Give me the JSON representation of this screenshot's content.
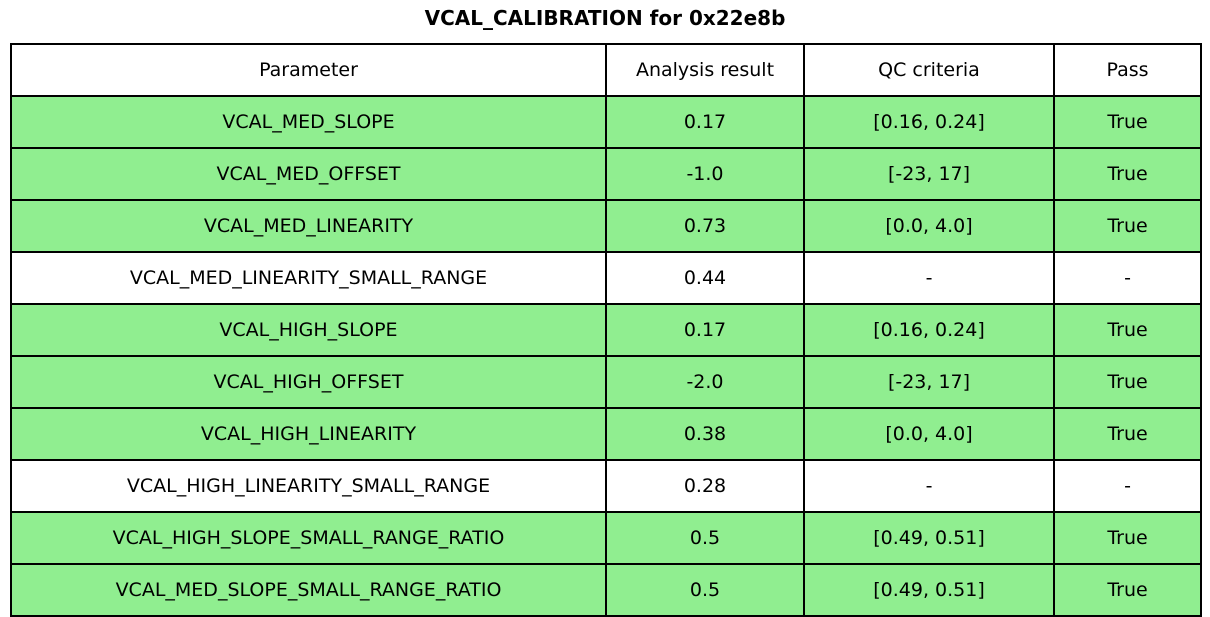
{
  "colors": {
    "row_highlight": "#90EE90",
    "row_plain": "#FFFFFF",
    "border": "#000000",
    "text": "#000000",
    "background": "#FFFFFF"
  },
  "chart_data": {
    "type": "table",
    "title": "VCAL_CALIBRATION for 0x22e8b",
    "columns": [
      "Parameter",
      "Analysis result",
      "QC criteria",
      "Pass"
    ],
    "rows": [
      {
        "parameter": "VCAL_MED_SLOPE",
        "analysis_result": "0.17",
        "qc_criteria": "[0.16, 0.24]",
        "pass": "True",
        "highlighted": true
      },
      {
        "parameter": "VCAL_MED_OFFSET",
        "analysis_result": "-1.0",
        "qc_criteria": "[-23, 17]",
        "pass": "True",
        "highlighted": true
      },
      {
        "parameter": "VCAL_MED_LINEARITY",
        "analysis_result": "0.73",
        "qc_criteria": "[0.0, 4.0]",
        "pass": "True",
        "highlighted": true
      },
      {
        "parameter": "VCAL_MED_LINEARITY_SMALL_RANGE",
        "analysis_result": "0.44",
        "qc_criteria": "-",
        "pass": "-",
        "highlighted": false
      },
      {
        "parameter": "VCAL_HIGH_SLOPE",
        "analysis_result": "0.17",
        "qc_criteria": "[0.16, 0.24]",
        "pass": "True",
        "highlighted": true
      },
      {
        "parameter": "VCAL_HIGH_OFFSET",
        "analysis_result": "-2.0",
        "qc_criteria": "[-23, 17]",
        "pass": "True",
        "highlighted": true
      },
      {
        "parameter": "VCAL_HIGH_LINEARITY",
        "analysis_result": "0.38",
        "qc_criteria": "[0.0, 4.0]",
        "pass": "True",
        "highlighted": true
      },
      {
        "parameter": "VCAL_HIGH_LINEARITY_SMALL_RANGE",
        "analysis_result": "0.28",
        "qc_criteria": "-",
        "pass": "-",
        "highlighted": false
      },
      {
        "parameter": "VCAL_HIGH_SLOPE_SMALL_RANGE_RATIO",
        "analysis_result": "0.5",
        "qc_criteria": "[0.49, 0.51]",
        "pass": "True",
        "highlighted": true
      },
      {
        "parameter": "VCAL_MED_SLOPE_SMALL_RANGE_RATIO",
        "analysis_result": "0.5",
        "qc_criteria": "[0.49, 0.51]",
        "pass": "True",
        "highlighted": true
      }
    ]
  }
}
